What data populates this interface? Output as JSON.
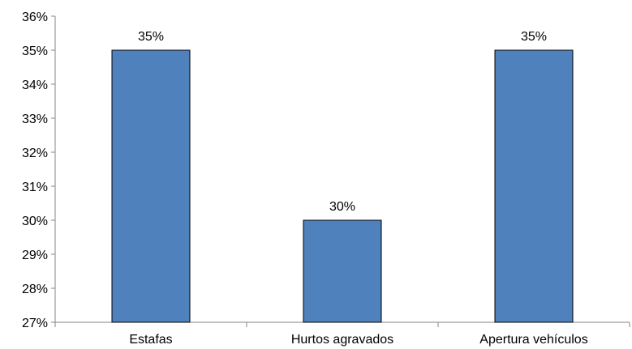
{
  "chart_data": {
    "type": "bar",
    "title": "",
    "xlabel": "",
    "ylabel": "",
    "categories": [
      "Estafas",
      "Hurtos agravados",
      "Apertura vehículos"
    ],
    "values": [
      35,
      30,
      35
    ],
    "data_labels": [
      "35%",
      "30%",
      "35%"
    ],
    "ylim": [
      27,
      36
    ],
    "ytick_values": [
      27,
      28,
      29,
      30,
      31,
      32,
      33,
      34,
      35,
      36
    ],
    "ytick_labels": [
      "27%",
      "28%",
      "29%",
      "30%",
      "31%",
      "32%",
      "33%",
      "34%",
      "35%",
      "36%"
    ],
    "grid": false,
    "legend": "none",
    "colors": {
      "bar_fill": "#4f81bd",
      "bar_stroke": "#000000",
      "axis": "#868686"
    }
  }
}
